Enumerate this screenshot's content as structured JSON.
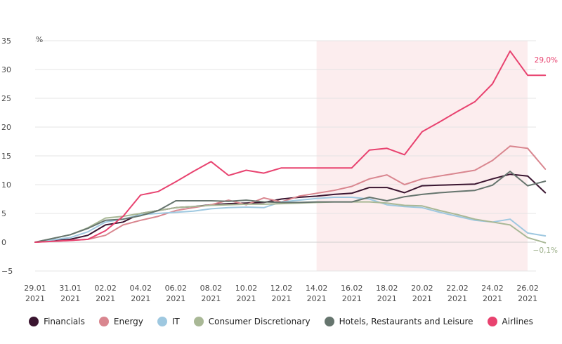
{
  "chart_data": {
    "type": "line",
    "unit_label": "%",
    "ylim": [
      -5,
      35
    ],
    "y_ticks": [
      "35",
      "30",
      "25",
      "20",
      "15",
      "10",
      "5",
      "0",
      "−5"
    ],
    "x_ticks": [
      {
        "day": "29.01",
        "year": "2021"
      },
      {
        "day": "31.01",
        "year": "2021"
      },
      {
        "day": "02.02",
        "year": "2021"
      },
      {
        "day": "04.02",
        "year": "2021"
      },
      {
        "day": "06.02",
        "year": "2021"
      },
      {
        "day": "08.02",
        "year": "2021"
      },
      {
        "day": "10.02",
        "year": "2021"
      },
      {
        "day": "12.02",
        "year": "2021"
      },
      {
        "day": "14.02",
        "year": "2021"
      },
      {
        "day": "16.02",
        "year": "2021"
      },
      {
        "day": "18.02",
        "year": "2021"
      },
      {
        "day": "20.02",
        "year": "2021"
      },
      {
        "day": "22.02",
        "year": "2021"
      },
      {
        "day": "24.02",
        "year": "2021"
      },
      {
        "day": "26.02",
        "year": "2021"
      }
    ],
    "highlight_from": "14.02.2021",
    "highlight_color": "#fcedee",
    "end_labels": [
      {
        "series": "Airlines",
        "text": "29,0%",
        "color": "#e8426f"
      },
      {
        "series": "Consumer Discretionary",
        "text": "−0,1%",
        "color": "#9db08a"
      }
    ],
    "x": [
      "2021-01-29",
      "2021-01-31",
      "2021-02-01",
      "2021-02-02",
      "2021-02-03",
      "2021-02-04",
      "2021-02-05",
      "2021-02-06",
      "2021-02-07",
      "2021-02-08",
      "2021-02-09",
      "2021-02-10",
      "2021-02-11",
      "2021-02-12",
      "2021-02-13",
      "2021-02-14",
      "2021-02-15",
      "2021-02-16",
      "2021-02-17",
      "2021-02-18",
      "2021-02-19",
      "2021-02-20",
      "2021-02-21",
      "2021-02-22",
      "2021-02-23",
      "2021-02-24",
      "2021-02-25",
      "2021-02-26",
      "2021-02-27"
    ],
    "series": [
      {
        "name": "Financials",
        "color": "#3a1530",
        "values": [
          0,
          0.5,
          1.2,
          3.0,
          3.5,
          5.0,
          5.5,
          6.0,
          6.2,
          6.5,
          6.7,
          6.8,
          6.9,
          7.5,
          7.8,
          8.0,
          8.3,
          8.5,
          9.5,
          9.5,
          8.6,
          9.8,
          9.9,
          10.0,
          10.1,
          11.0,
          11.8,
          11.5,
          8.6
        ]
      },
      {
        "name": "Energy",
        "color": "#d9868f",
        "values": [
          0,
          0.3,
          0.5,
          1.2,
          3.0,
          3.8,
          4.5,
          5.5,
          6.0,
          6.5,
          7.3,
          6.5,
          7.7,
          7.0,
          8.0,
          8.5,
          9.0,
          9.7,
          11.0,
          11.7,
          10.0,
          11.0,
          11.5,
          12.0,
          12.5,
          14.2,
          16.7,
          16.3,
          12.7
        ]
      },
      {
        "name": "IT",
        "color": "#9ec8e0",
        "values": [
          0,
          0.8,
          1.8,
          3.5,
          4.0,
          4.8,
          5.0,
          5.2,
          5.4,
          5.8,
          6.0,
          6.1,
          6.0,
          7.0,
          7.3,
          7.6,
          7.8,
          7.8,
          7.5,
          6.5,
          6.2,
          6.0,
          5.2,
          4.5,
          3.8,
          3.5,
          4.0,
          1.6,
          1.1
        ]
      },
      {
        "name": "Consumer Discretionary",
        "color": "#a9b896",
        "values": [
          0,
          1.3,
          2.5,
          4.2,
          4.5,
          5.0,
          5.5,
          6.0,
          6.2,
          6.4,
          6.5,
          6.6,
          6.6,
          6.7,
          6.8,
          6.9,
          7.0,
          7.0,
          7.0,
          6.8,
          6.4,
          6.3,
          5.5,
          4.8,
          4.0,
          3.5,
          3.0,
          0.8,
          -0.1
        ]
      },
      {
        "name": "Hotels, Restaurants and Leisure",
        "color": "#66756e",
        "values": [
          0,
          1.3,
          2.4,
          3.8,
          4.0,
          4.6,
          5.5,
          7.2,
          7.2,
          7.2,
          7.1,
          7.3,
          7.0,
          6.9,
          6.9,
          7.0,
          7.0,
          7.0,
          7.8,
          7.2,
          7.9,
          8.3,
          8.6,
          8.8,
          9.0,
          9.9,
          12.3,
          9.8,
          10.6
        ]
      },
      {
        "name": "Airlines",
        "color": "#e8426f",
        "values": [
          0,
          0.3,
          0.5,
          2.0,
          4.5,
          8.2,
          8.8,
          10.5,
          12.3,
          14.0,
          11.6,
          12.5,
          12.0,
          12.9,
          12.9,
          12.9,
          12.9,
          12.9,
          16.0,
          16.3,
          15.2,
          19.2,
          20.9,
          22.7,
          24.4,
          27.5,
          33.2,
          29.0,
          29.0
        ]
      }
    ]
  }
}
